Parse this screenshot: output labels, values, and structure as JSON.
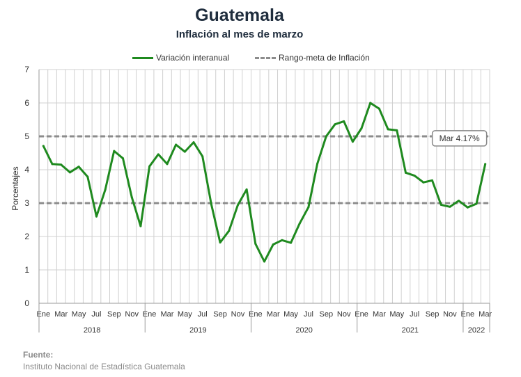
{
  "title": "Guatemala",
  "subtitle": "Inflación al mes de marzo",
  "legend": {
    "series_label": "Variación interanual",
    "band_label": "Rango-meta de Inflación"
  },
  "source": {
    "label": "Fuente:",
    "text": "Instituto Nacional de Estadística Guatemala"
  },
  "colors": {
    "series": "#1f8a1f",
    "band": "#8c8c8c",
    "grid": "#d0d0d0"
  },
  "chart_data": {
    "type": "line",
    "title": "Guatemala",
    "subtitle": "Inflación al mes de marzo",
    "ylabel": "Porcentajes",
    "ylim": [
      0,
      7
    ],
    "yticks": [
      0,
      1,
      2,
      3,
      4,
      5,
      6,
      7
    ],
    "grid": true,
    "legend_position": "top",
    "month_labels": [
      "Ene",
      "Mar",
      "May",
      "Jul",
      "Sep",
      "Nov",
      "Ene",
      "Mar",
      "May",
      "Jul",
      "Sep",
      "Nov",
      "Ene",
      "Mar",
      "May",
      "Jul",
      "Sep",
      "Nov",
      "Ene",
      "Mar",
      "May",
      "Jul",
      "Sep",
      "Nov",
      "Ene",
      "Mar"
    ],
    "years": [
      "2018",
      "2019",
      "2020",
      "2021",
      "2022"
    ],
    "x": [
      "2018-01",
      "2018-02",
      "2018-03",
      "2018-04",
      "2018-05",
      "2018-06",
      "2018-07",
      "2018-08",
      "2018-09",
      "2018-10",
      "2018-11",
      "2018-12",
      "2019-01",
      "2019-02",
      "2019-03",
      "2019-04",
      "2019-05",
      "2019-06",
      "2019-07",
      "2019-08",
      "2019-09",
      "2019-10",
      "2019-11",
      "2019-12",
      "2020-01",
      "2020-02",
      "2020-03",
      "2020-04",
      "2020-05",
      "2020-06",
      "2020-07",
      "2020-08",
      "2020-09",
      "2020-10",
      "2020-11",
      "2020-12",
      "2021-01",
      "2021-02",
      "2021-03",
      "2021-04",
      "2021-05",
      "2021-06",
      "2021-07",
      "2021-08",
      "2021-09",
      "2021-10",
      "2021-11",
      "2021-12",
      "2022-01",
      "2022-02",
      "2022-03"
    ],
    "series": [
      {
        "name": "Variación interanual",
        "values": [
          4.71,
          4.17,
          4.15,
          3.92,
          4.09,
          3.79,
          2.6,
          3.4,
          4.56,
          4.34,
          3.18,
          2.31,
          4.1,
          4.46,
          4.17,
          4.75,
          4.54,
          4.82,
          4.4,
          2.96,
          1.82,
          2.17,
          2.94,
          3.41,
          1.78,
          1.25,
          1.76,
          1.89,
          1.81,
          2.39,
          2.88,
          4.18,
          5.0,
          5.36,
          5.45,
          4.84,
          5.24,
          6.0,
          5.83,
          5.21,
          5.18,
          3.91,
          3.82,
          3.62,
          3.68,
          2.95,
          2.89,
          3.07,
          2.87,
          2.98,
          4.17
        ]
      }
    ],
    "band": {
      "name": "Rango-meta de Inflación",
      "lower": 3,
      "upper": 5
    },
    "annotation": {
      "text": "Mar 4.17%",
      "x": "2022-03",
      "y": 4.17
    }
  }
}
